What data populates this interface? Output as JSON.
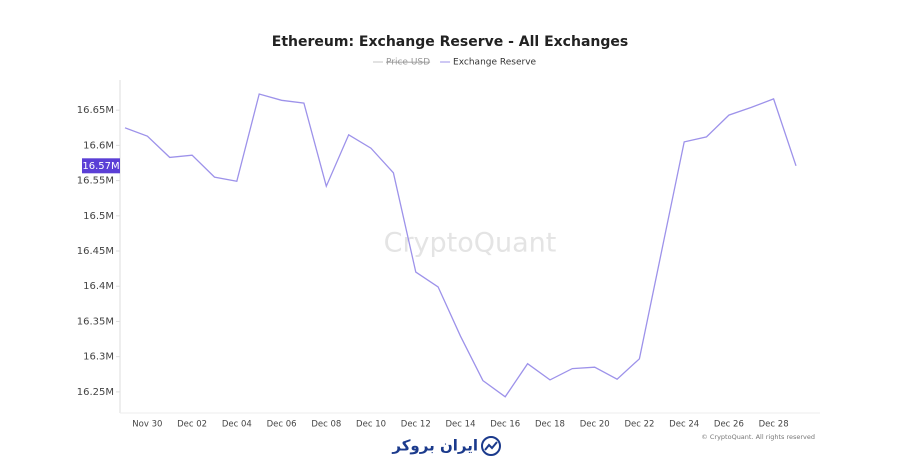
{
  "chart_data": {
    "type": "line",
    "title": "Ethereum: Exchange Reserve - All Exchanges",
    "watermark": "CryptoQuant",
    "copyright": "© CryptoQuant. All rights reserved",
    "brand": "ایران بروکر",
    "categories": [
      null,
      "Nov 30",
      null,
      "Dec 02",
      null,
      "Dec 04",
      null,
      "Dec 06",
      null,
      "Dec 08",
      null,
      "Dec 10",
      null,
      "Dec 12",
      null,
      "Dec 14",
      null,
      "Dec 16",
      null,
      "Dec 18",
      null,
      "Dec 20",
      null,
      "Dec 22",
      null,
      "Dec 24",
      null,
      "Dec 26",
      null,
      "Dec 28",
      null
    ],
    "series": [
      {
        "name": "Price USD",
        "color": "#c4c4c4",
        "hidden": true,
        "values": null
      },
      {
        "name": "Exchange Reserve",
        "color": "#9d92ea",
        "values": [
          16.625,
          16.613,
          16.583,
          16.586,
          16.555,
          16.549,
          16.673,
          16.664,
          16.66,
          16.542,
          16.615,
          16.596,
          16.561,
          16.42,
          16.399,
          16.329,
          16.266,
          16.243,
          16.29,
          16.267,
          16.283,
          16.285,
          16.268,
          16.297,
          16.451,
          16.605,
          16.612,
          16.643,
          16.654,
          16.666,
          16.571
        ],
        "value_labels": [
          null,
          null,
          null,
          null,
          null,
          null,
          null,
          null,
          null,
          null,
          null,
          null,
          null,
          null,
          null,
          null,
          null,
          null,
          null,
          null,
          null,
          null,
          null,
          null,
          null,
          null,
          null,
          null,
          null,
          null,
          "16.57M"
        ]
      }
    ],
    "ylim": [
      16.22,
      16.69
    ],
    "yticks": [
      {
        "value": 16.25,
        "label": "16.25M"
      },
      {
        "value": 16.3,
        "label": "16.3M"
      },
      {
        "value": 16.35,
        "label": "16.35M"
      },
      {
        "value": 16.4,
        "label": "16.4M"
      },
      {
        "value": 16.45,
        "label": "16.45M"
      },
      {
        "value": 16.5,
        "label": "16.5M"
      },
      {
        "value": 16.55,
        "label": "16.55M"
      },
      {
        "value": 16.6,
        "label": "16.6M"
      },
      {
        "value": 16.65,
        "label": "16.65M"
      }
    ],
    "grid": false
  }
}
